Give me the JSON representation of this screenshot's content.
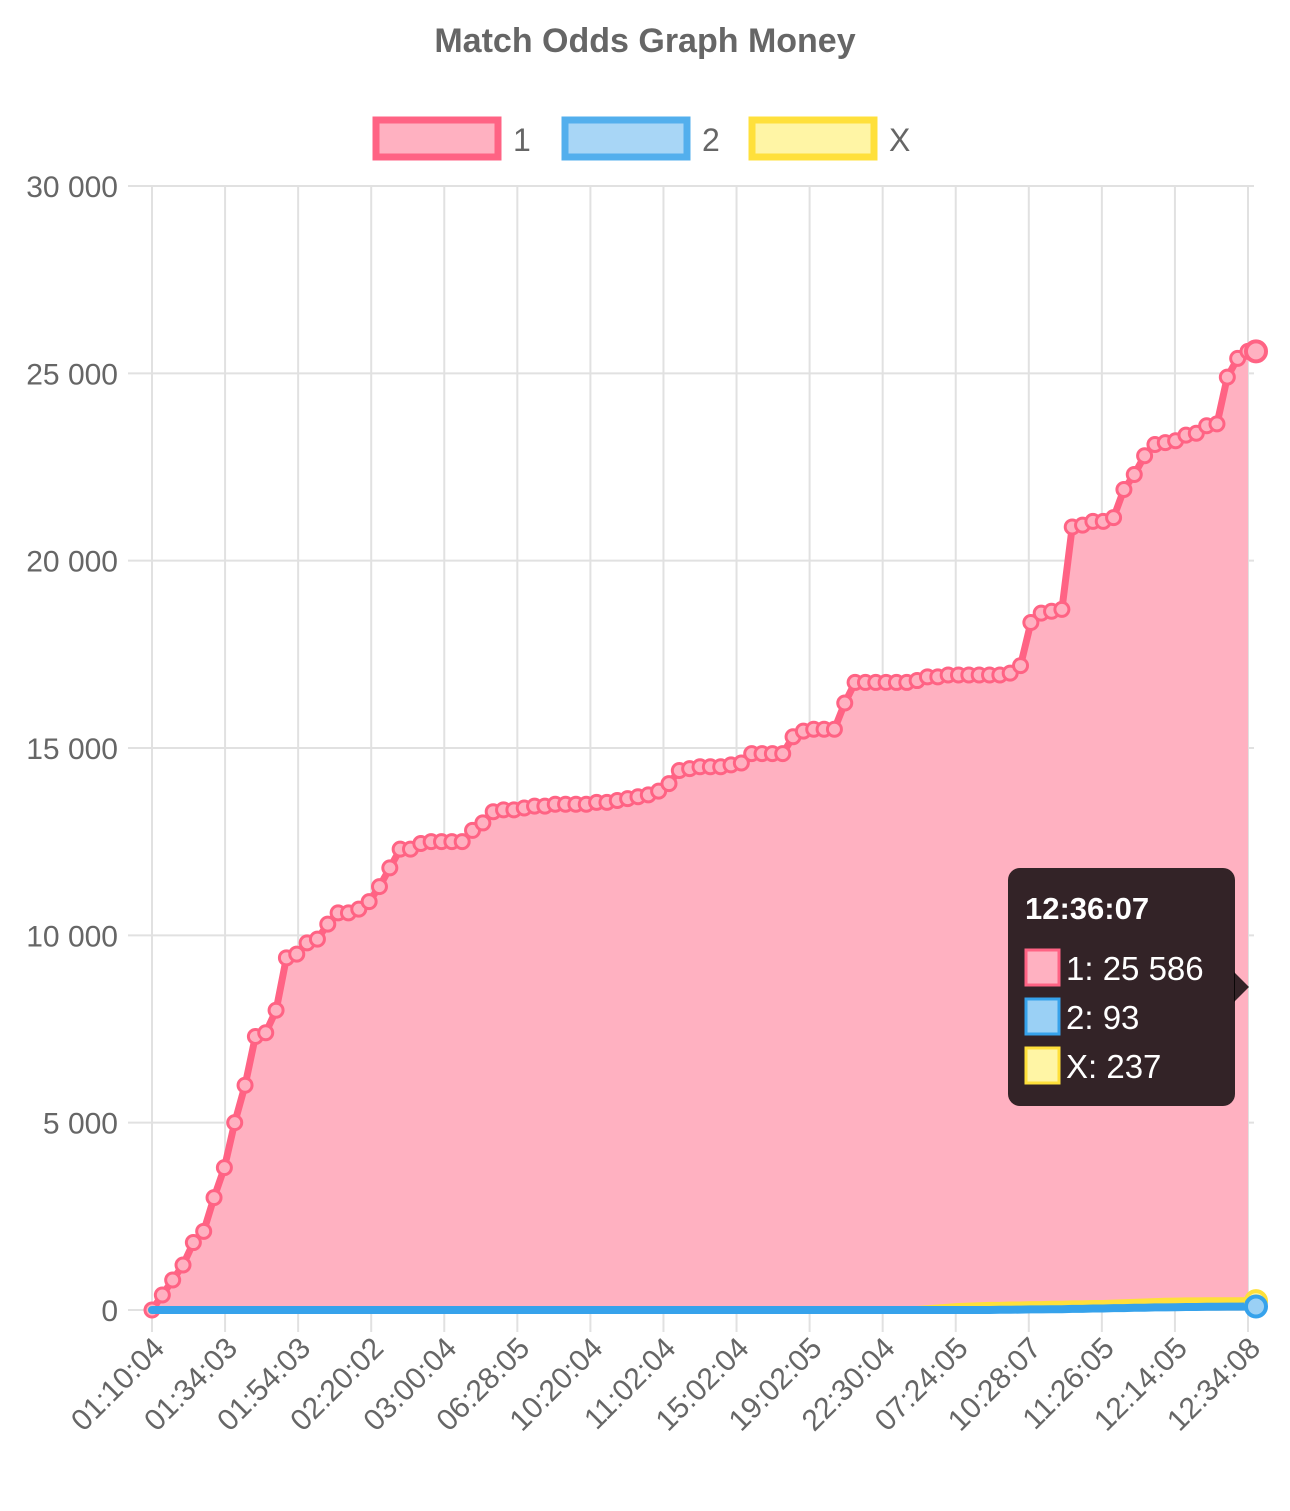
{
  "chart_data": {
    "type": "area",
    "title": "Match Odds Graph Money",
    "ylim": [
      0,
      30000
    ],
    "y_ticks": [
      "30 000",
      "25 000",
      "20 000",
      "15 000",
      "10 000",
      "5 000",
      "0"
    ],
    "y_tick_values": [
      30000,
      25000,
      20000,
      15000,
      10000,
      5000,
      0
    ],
    "x_tick_labels": [
      "01:10:04",
      "01:34:03",
      "01:54:03",
      "02:20:02",
      "03:00:04",
      "06:28:05",
      "10:20:04",
      "11:02:04",
      "15:02:04",
      "19:02:05",
      "22:30:04",
      "07:24:05",
      "10:28:07",
      "11:26:05",
      "12:14:05",
      "12:34:08"
    ],
    "grid": true,
    "legend_position": "top",
    "series": [
      {
        "name": "1",
        "color": "#ff6384",
        "fill": "#ffb1c1",
        "values": [
          0,
          400,
          800,
          1200,
          1800,
          2100,
          3000,
          3800,
          5000,
          6000,
          7300,
          7400,
          8000,
          9400,
          9500,
          9800,
          9900,
          10300,
          10600,
          10600,
          10700,
          10900,
          11300,
          11800,
          12300,
          12300,
          12450,
          12500,
          12500,
          12500,
          12500,
          12800,
          13000,
          13300,
          13350,
          13350,
          13400,
          13450,
          13450,
          13500,
          13500,
          13500,
          13500,
          13550,
          13550,
          13600,
          13650,
          13700,
          13750,
          13850,
          14050,
          14400,
          14450,
          14500,
          14500,
          14500,
          14550,
          14600,
          14850,
          14850,
          14850,
          14850,
          15300,
          15450,
          15500,
          15500,
          15500,
          16200,
          16750,
          16750,
          16750,
          16750,
          16750,
          16750,
          16800,
          16900,
          16900,
          16950,
          16950,
          16950,
          16950,
          16950,
          16950,
          17000,
          17200,
          18350,
          18600,
          18650,
          18700,
          20900,
          20950,
          21050,
          21050,
          21150,
          21900,
          22300,
          22800,
          23100,
          23150,
          23200,
          23350,
          23400,
          23600,
          23650,
          24900,
          25400,
          25586
        ]
      },
      {
        "name": "2",
        "color": "#36a2eb",
        "fill": "#9ad0f5",
        "values": [
          0,
          0,
          0,
          0,
          0,
          0,
          0,
          0,
          0,
          0,
          0,
          0,
          0,
          0,
          0,
          0,
          0,
          0,
          0,
          0,
          0,
          0,
          0,
          0,
          0,
          0,
          0,
          0,
          0,
          0,
          0,
          0,
          0,
          0,
          0,
          0,
          0,
          0,
          0,
          0,
          0,
          0,
          0,
          0,
          0,
          0,
          0,
          0,
          0,
          0,
          0,
          0,
          0,
          0,
          0,
          0,
          0,
          0,
          0,
          0,
          0,
          0,
          0,
          0,
          0,
          0,
          0,
          0,
          0,
          0,
          0,
          0,
          0,
          0,
          0,
          0,
          0,
          0,
          0,
          0,
          0,
          0,
          5,
          5,
          10,
          15,
          15,
          20,
          20,
          30,
          30,
          40,
          40,
          50,
          50,
          60,
          60,
          70,
          70,
          75,
          80,
          80,
          85,
          88,
          90,
          92,
          93
        ]
      },
      {
        "name": "X",
        "color": "#ffe03b",
        "fill": "#fff5a5",
        "values": [
          0,
          0,
          0,
          0,
          0,
          0,
          0,
          0,
          0,
          0,
          0,
          0,
          0,
          0,
          0,
          0,
          0,
          0,
          0,
          0,
          0,
          0,
          0,
          0,
          0,
          0,
          0,
          0,
          0,
          0,
          0,
          0,
          0,
          0,
          0,
          0,
          0,
          0,
          0,
          0,
          0,
          0,
          0,
          0,
          0,
          0,
          0,
          0,
          0,
          0,
          0,
          0,
          0,
          0,
          0,
          0,
          0,
          0,
          0,
          0,
          0,
          0,
          0,
          0,
          0,
          0,
          0,
          0,
          0,
          0,
          0,
          0,
          0,
          0,
          0,
          20,
          40,
          60,
          80,
          90,
          100,
          110,
          110,
          120,
          120,
          130,
          130,
          140,
          140,
          150,
          150,
          160,
          160,
          170,
          180,
          190,
          200,
          210,
          220,
          225,
          230,
          230,
          232,
          234,
          235,
          236,
          237
        ]
      }
    ]
  },
  "tooltip": {
    "title": "12:36:07",
    "lines": [
      "1: 25 586",
      "2: 93",
      "X: 237"
    ],
    "colors": [
      "#ffb1c1",
      "#9ad0f5",
      "#fff5a5"
    ],
    "border_colors": [
      "#ff6384",
      "#36a2eb",
      "#ffe03b"
    ]
  }
}
